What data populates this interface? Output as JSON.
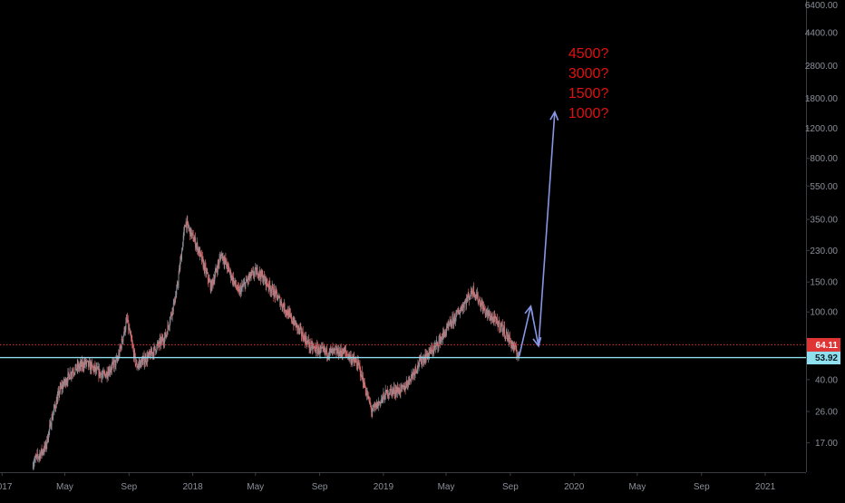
{
  "chart_data": {
    "type": "candlestick",
    "scale": "log",
    "ylim": [
      12,
      6500
    ],
    "xlim": [
      "2016-12-28",
      "2021-03-20"
    ],
    "y_ticks": [
      "17.00",
      "26.00",
      "40.00",
      "53.92",
      "64.11",
      "100.00",
      "150.00",
      "230.00",
      "350.00",
      "550.00",
      "800.00",
      "1200.00",
      "1800.00",
      "2800.00",
      "4400.00",
      "6400.00"
    ],
    "x_ticks": [
      {
        "label": "2017",
        "date": "2017-01-01"
      },
      {
        "label": "May",
        "date": "2017-05-01"
      },
      {
        "label": "Sep",
        "date": "2017-09-01"
      },
      {
        "label": "2018",
        "date": "2018-01-01"
      },
      {
        "label": "May",
        "date": "2018-05-01"
      },
      {
        "label": "Sep",
        "date": "2018-09-01"
      },
      {
        "label": "2019",
        "date": "2019-01-01"
      },
      {
        "label": "May",
        "date": "2019-05-01"
      },
      {
        "label": "Sep",
        "date": "2019-09-01"
      },
      {
        "label": "2020",
        "date": "2020-01-01"
      },
      {
        "label": "May",
        "date": "2020-05-01"
      },
      {
        "label": "Sep",
        "date": "2020-09-01"
      },
      {
        "label": "2021",
        "date": "2021-01-01"
      }
    ],
    "price_path": [
      [
        "2017-03-01",
        13
      ],
      [
        "2017-03-25",
        16
      ],
      [
        "2017-04-08",
        25
      ],
      [
        "2017-04-22",
        35
      ],
      [
        "2017-05-15",
        45
      ],
      [
        "2017-06-10",
        50
      ],
      [
        "2017-07-15",
        42
      ],
      [
        "2017-08-10",
        52
      ],
      [
        "2017-08-28",
        90
      ],
      [
        "2017-09-15",
        48
      ],
      [
        "2017-10-10",
        55
      ],
      [
        "2017-11-10",
        72
      ],
      [
        "2017-12-01",
        130
      ],
      [
        "2017-12-18",
        340
      ],
      [
        "2018-01-10",
        240
      ],
      [
        "2018-02-05",
        140
      ],
      [
        "2018-02-25",
        220
      ],
      [
        "2018-03-30",
        130
      ],
      [
        "2018-04-20",
        160
      ],
      [
        "2018-05-05",
        175
      ],
      [
        "2018-06-10",
        125
      ],
      [
        "2018-07-10",
        90
      ],
      [
        "2018-08-15",
        62
      ],
      [
        "2018-09-10",
        58
      ],
      [
        "2018-10-20",
        58
      ],
      [
        "2018-11-15",
        48
      ],
      [
        "2018-12-10",
        26
      ],
      [
        "2019-01-10",
        34
      ],
      [
        "2019-02-08",
        35
      ],
      [
        "2019-03-10",
        50
      ],
      [
        "2019-04-10",
        62
      ],
      [
        "2019-05-10",
        85
      ],
      [
        "2019-06-22",
        135
      ],
      [
        "2019-07-15",
        100
      ],
      [
        "2019-08-15",
        82
      ],
      [
        "2019-09-10",
        60
      ],
      [
        "2019-09-18",
        55
      ]
    ],
    "arrows": [
      [
        [
          "2019-09-18",
          55
        ],
        [
          "2019-10-10",
          108
        ],
        [
          "2019-10-25",
          63
        ],
        [
          "2019-11-25",
          1500
        ]
      ]
    ],
    "annotations": [
      "4500?",
      "3000?",
      "1500?",
      "1000?"
    ],
    "lines": [
      {
        "name": "resistance",
        "value": 64.11,
        "label": "64.11",
        "color": "#e03535",
        "style": "dotted"
      },
      {
        "name": "support",
        "value": 53.92,
        "label": "53.92",
        "color": "#8fe0ef",
        "style": "solid"
      }
    ],
    "grid": false,
    "colors": {
      "up": "#8a8f99",
      "down": "#d86a6a",
      "arrow": "#8797e6",
      "axis": "#8a8f99",
      "background": "#000000"
    }
  }
}
